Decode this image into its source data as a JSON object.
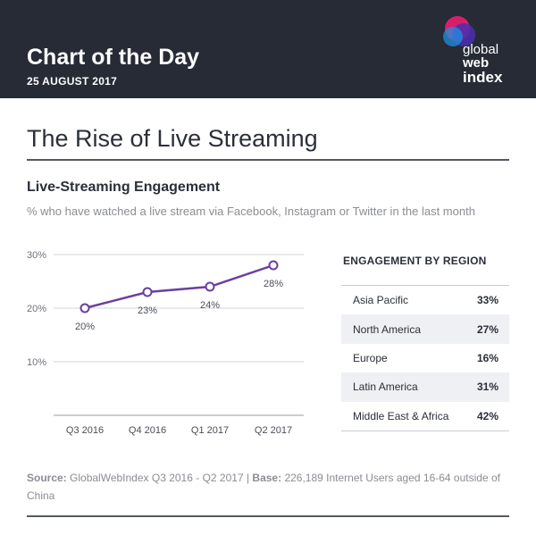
{
  "header": {
    "title": "Chart of the Day",
    "date": "25 AUGUST 2017"
  },
  "logo": {
    "line1": "global",
    "line2": "web",
    "line3": "index"
  },
  "main_title": "The Rise of Live Streaming",
  "section": {
    "title": "Live-Streaming Engagement",
    "description": "% who have watched a live stream via Facebook, Instagram or Twitter in the last month"
  },
  "chart_data": {
    "type": "line",
    "categories": [
      "Q3 2016",
      "Q4 2016",
      "Q1 2017",
      "Q2 2017"
    ],
    "values": [
      20,
      23,
      24,
      28
    ],
    "data_labels": [
      "20%",
      "23%",
      "24%",
      "28%"
    ],
    "ylim": [
      0,
      30
    ],
    "yticks": [
      10,
      20,
      30
    ],
    "ytick_labels": [
      "10%",
      "20%",
      "30%"
    ],
    "grid": true,
    "color": "#6b3fa0"
  },
  "region": {
    "title": "ENGAGEMENT BY REGION",
    "rows": [
      {
        "name": "Asia Pacific",
        "value": "33%"
      },
      {
        "name": "North America",
        "value": "27%"
      },
      {
        "name": "Europe",
        "value": "16%"
      },
      {
        "name": "Latin America",
        "value": "31%"
      },
      {
        "name": "Middle East & Africa",
        "value": "42%"
      }
    ]
  },
  "footer": {
    "source_label": "Source:",
    "source_text": "GlobalWebIndex Q3 2016 - Q2 2017",
    "separator": "|",
    "base_label": "Base:",
    "base_text": "226,189 Internet Users aged 16-64 outside of China"
  }
}
